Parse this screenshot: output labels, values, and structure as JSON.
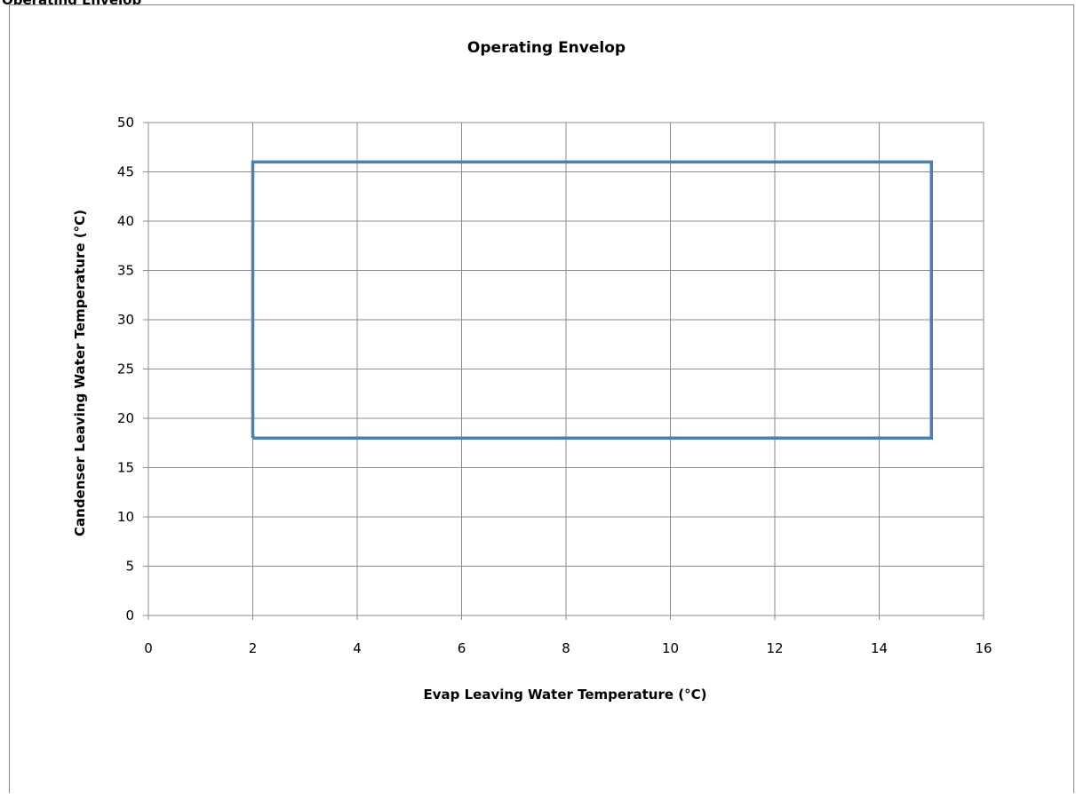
{
  "page": {
    "heading": "Operating Envelop"
  },
  "chart_data": {
    "type": "line",
    "title": "Operating Envelop",
    "xlabel": "Evap Leaving Water Temperature (°C)",
    "ylabel": "Candenser Leaving Water Temperature (°C)",
    "xlim": [
      0,
      16
    ],
    "ylim": [
      0,
      50
    ],
    "x_ticks": [
      0,
      2,
      4,
      6,
      8,
      10,
      12,
      14,
      16
    ],
    "y_ticks": [
      0,
      5,
      10,
      15,
      20,
      25,
      30,
      35,
      40,
      45,
      50
    ],
    "grid": true,
    "legend": "none",
    "series": [
      {
        "color": "#4a7ebb",
        "points": [
          [
            2,
            18
          ],
          [
            2,
            46
          ],
          [
            15,
            46
          ],
          [
            15,
            18
          ],
          [
            2,
            18
          ]
        ]
      }
    ]
  }
}
